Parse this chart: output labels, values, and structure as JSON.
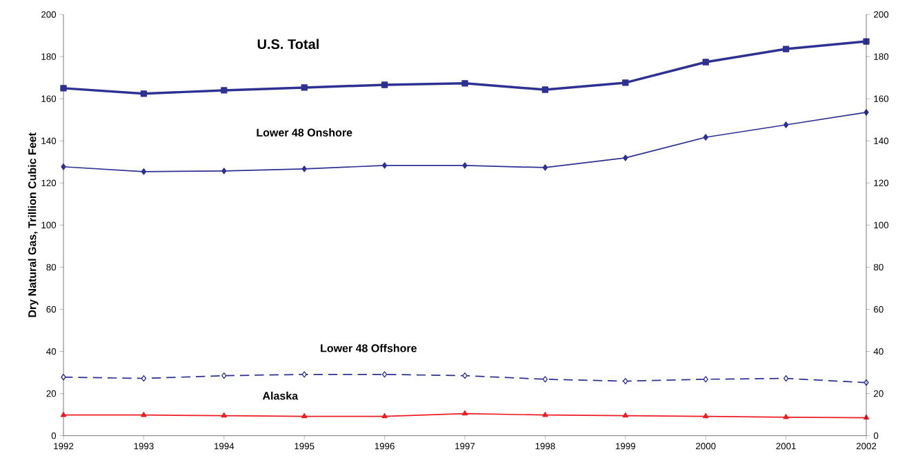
{
  "chart_data": {
    "type": "line",
    "ylabel": "Dry Natural Gas, Trillion Cubic Feet",
    "x": [
      1992,
      1993,
      1994,
      1995,
      1996,
      1997,
      1998,
      1999,
      2000,
      2001,
      2002
    ],
    "series": [
      {
        "name": "U.S. Total",
        "color": "#2e3192",
        "marker": "square",
        "line_style": "solid",
        "values": [
          165.0,
          162.4,
          164.0,
          165.3,
          166.6,
          167.3,
          164.3,
          167.6,
          177.4,
          183.6,
          187.2
        ]
      },
      {
        "name": "Lower 48 Onshore",
        "color": "#2e3192",
        "marker": "diamond",
        "line_style": "solid",
        "values": [
          127.7,
          125.4,
          125.7,
          126.7,
          128.3,
          128.3,
          127.3,
          131.9,
          141.7,
          147.6,
          153.5
        ]
      },
      {
        "name": "Lower 48 Offshore",
        "color": "#2e3192",
        "marker": "diamond",
        "line_style": "dashed",
        "values": [
          27.8,
          27.2,
          28.5,
          29.1,
          29.1,
          28.5,
          26.8,
          25.9,
          26.8,
          27.2,
          25.2
        ]
      },
      {
        "name": "Alaska",
        "color": "#ed1c24",
        "marker": "triangle",
        "line_style": "solid",
        "values": [
          9.8,
          9.8,
          9.5,
          9.2,
          9.2,
          10.5,
          9.8,
          9.5,
          9.2,
          8.8,
          8.5
        ]
      }
    ],
    "xlim": [
      1992,
      2002
    ],
    "xticks": [
      1992,
      1993,
      1994,
      1995,
      1996,
      1997,
      1998,
      1999,
      2000,
      2001,
      2002
    ],
    "ylim": [
      0,
      200
    ],
    "yticks": [
      0,
      20,
      40,
      60,
      80,
      100,
      120,
      140,
      160,
      180,
      200
    ],
    "y2lim": [
      0,
      200
    ],
    "y2ticks": [
      0,
      20,
      40,
      60,
      80,
      100,
      120,
      140,
      160,
      180,
      200
    ]
  }
}
